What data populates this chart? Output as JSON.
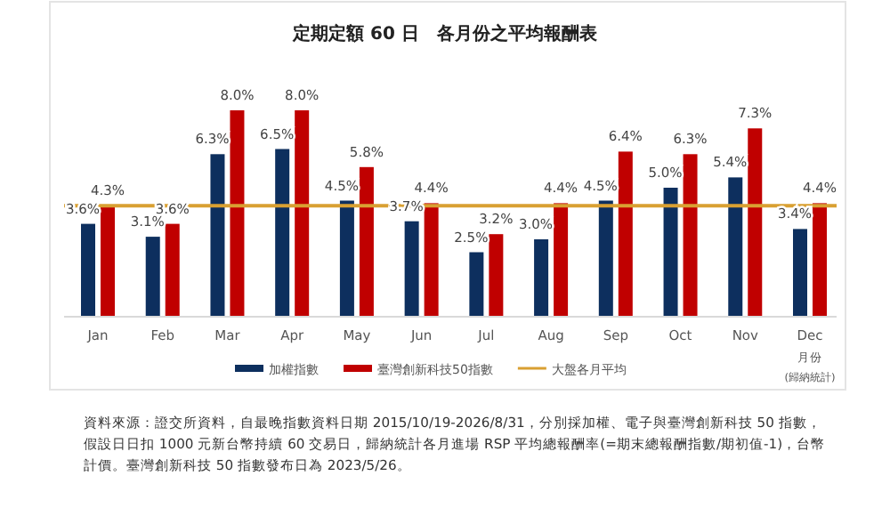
{
  "chart_data": {
    "type": "bar",
    "title": "定期定額 60 日　各月份之平均報酬表",
    "xlabel": "月份",
    "categories": [
      "Jan",
      "Feb",
      "Mar",
      "Apr",
      "May",
      "Jun",
      "Jul",
      "Aug",
      "Sep",
      "Oct",
      "Nov",
      "Dec"
    ],
    "series": [
      {
        "name": "加權指數",
        "color": "#0d2f5e",
        "values": [
          3.6,
          3.1,
          6.3,
          6.5,
          4.5,
          3.7,
          2.5,
          3.0,
          4.5,
          5.0,
          5.4,
          3.4
        ],
        "value_labels": [
          "3.6%",
          "3.1%",
          "6.3%",
          "6.5%",
          "4.5%",
          "3.7%",
          "2.5%",
          "3.0%",
          "4.5%",
          "5.0%",
          "5.4%",
          "3.4%"
        ]
      },
      {
        "name": "臺灣創新科技50指數",
        "color": "#c00000",
        "values": [
          4.3,
          3.6,
          8.0,
          8.0,
          5.8,
          4.4,
          3.2,
          4.4,
          6.4,
          6.3,
          7.3,
          4.4
        ],
        "value_labels": [
          "4.3%",
          "3.6%",
          "8.0%",
          "8.0%",
          "5.8%",
          "4.4%",
          "3.2%",
          "4.4%",
          "6.4%",
          "6.3%",
          "7.3%",
          "4.4%"
        ]
      }
    ],
    "ref_lines": [
      {
        "axis": "y",
        "value": 4.3,
        "label": "大盤各月平均",
        "color": "#d9a032"
      }
    ],
    "legend": "bottom",
    "annotations": [
      "(歸納統計)",
      "資料來源：證交所資料，自最晚指數資料日期 2015/10/19-2026/8/31，分別採加權、電子與臺灣創新科技 50 指數，假設日日扣 1000 元新台幣持續 60 交易日，歸納統計各月進場 RSP 平均總報酬率(=期末總報酬指數/期初值-1)，台幣計價。臺灣創新科技 50 指數發布日為 2023/5/26。"
    ]
  }
}
